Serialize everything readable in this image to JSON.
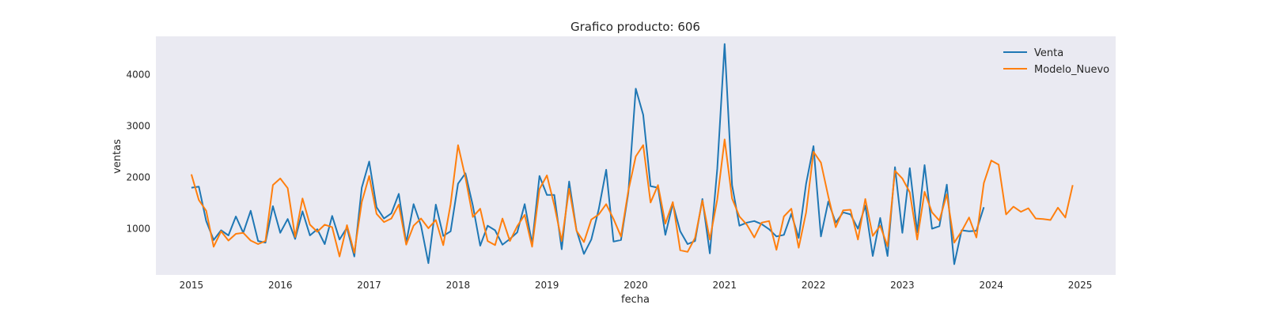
{
  "chart_data": {
    "type": "line",
    "title": "Grafico producto: 606",
    "xlabel": "fecha",
    "ylabel": "ventas",
    "xlim": [
      2014.6,
      2025.4
    ],
    "ylim": [
      100,
      4750
    ],
    "xticks": [
      2015,
      2016,
      2017,
      2018,
      2019,
      2020,
      2021,
      2022,
      2023,
      2024,
      2025
    ],
    "yticks": [
      1000,
      2000,
      3000,
      4000
    ],
    "grid": false,
    "background": "#eaeaf2",
    "legend": "top-right",
    "x_start": 2015.0,
    "x_step": 0.08333333,
    "series": [
      {
        "name": "Venta",
        "color": "#1f77b4",
        "values": [
          1800,
          1820,
          1150,
          780,
          970,
          870,
          1240,
          920,
          1350,
          760,
          730,
          1440,
          920,
          1190,
          800,
          1340,
          870,
          990,
          700,
          1250,
          790,
          1020,
          460,
          1800,
          2310,
          1420,
          1200,
          1300,
          1680,
          730,
          1480,
          1060,
          330,
          1470,
          860,
          950,
          1880,
          2080,
          1450,
          670,
          1060,
          970,
          690,
          800,
          930,
          1480,
          710,
          2030,
          1660,
          1660,
          600,
          1920,
          970,
          510,
          790,
          1380,
          2150,
          750,
          780,
          1700,
          3730,
          3220,
          1830,
          1800,
          880,
          1490,
          950,
          700,
          760,
          1580,
          520,
          2170,
          4600,
          1850,
          1060,
          1120,
          1150,
          1090,
          990,
          850,
          880,
          1290,
          820,
          1880,
          2610,
          850,
          1530,
          1120,
          1320,
          1280,
          1000,
          1450,
          470,
          1210,
          470,
          2200,
          920,
          2180,
          930,
          2240,
          1000,
          1050,
          1860,
          310,
          970,
          950,
          960,
          1420
        ],
        "line_width": 2
      },
      {
        "name": "Modelo_Nuevo",
        "color": "#ff7f0e",
        "values": [
          2060,
          1560,
          1350,
          650,
          950,
          770,
          900,
          920,
          770,
          700,
          760,
          1850,
          1980,
          1790,
          840,
          1590,
          1080,
          940,
          1080,
          1030,
          460,
          1070,
          530,
          1520,
          2030,
          1290,
          1130,
          1200,
          1470,
          690,
          1060,
          1200,
          1010,
          1170,
          680,
          1480,
          2630,
          2000,
          1230,
          1390,
          760,
          680,
          1200,
          760,
          1050,
          1270,
          650,
          1770,
          2040,
          1460,
          760,
          1780,
          960,
          740,
          1180,
          1280,
          1480,
          1190,
          850,
          1740,
          2410,
          2630,
          1510,
          1850,
          1100,
          1520,
          580,
          550,
          820,
          1550,
          790,
          1570,
          2740,
          1590,
          1240,
          1080,
          830,
          1120,
          1150,
          590,
          1240,
          1390,
          630,
          1320,
          2500,
          2290,
          1630,
          1030,
          1360,
          1370,
          790,
          1580,
          860,
          1060,
          660,
          2130,
          1980,
          1710,
          790,
          1720,
          1320,
          1160,
          1670,
          730,
          950,
          1220,
          830,
          1890,
          2330,
          2250,
          1280,
          1430,
          1330,
          1400,
          1200,
          1190,
          1170,
          1410,
          1220,
          1850
        ],
        "line_width": 2
      }
    ]
  }
}
